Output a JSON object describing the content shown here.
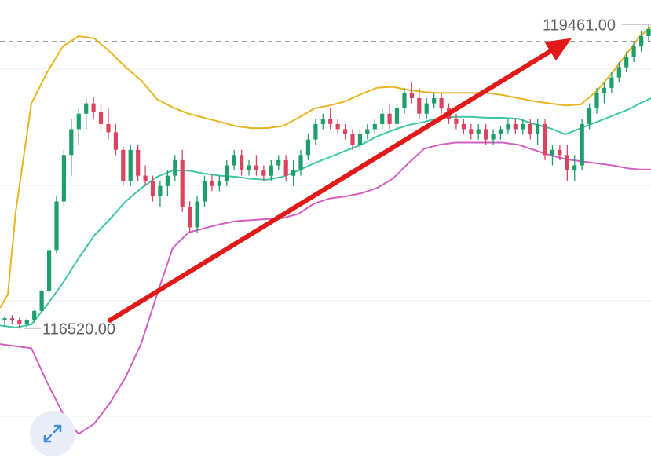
{
  "chart_data": {
    "type": "candlestick",
    "title": "",
    "xlabel": "",
    "ylabel": "",
    "price_labels": {
      "high": "119461.00",
      "low": "116520.00"
    },
    "high_value": 119461.0,
    "low_value": 116520.0,
    "reference_line": {
      "value": 119300,
      "style": "dashed"
    },
    "ylim": [
      115200,
      119700
    ],
    "grid": true,
    "colors": {
      "up": "#1f9d6b",
      "down": "#d9455f",
      "upper_band": "#e8b422",
      "middle_band": "#3ec7a6",
      "lower_band": "#d45fc4",
      "arrow": "#e01919"
    },
    "candles": [
      [
        116600,
        116640,
        116540,
        116620
      ],
      [
        116620,
        116650,
        116560,
        116600
      ],
      [
        116600,
        116630,
        116520,
        116560
      ],
      [
        116560,
        116620,
        116530,
        116600
      ],
      [
        116600,
        116700,
        116580,
        116690
      ],
      [
        116690,
        116900,
        116680,
        116880
      ],
      [
        116880,
        117300,
        116860,
        117280
      ],
      [
        117280,
        117800,
        117250,
        117750
      ],
      [
        117750,
        118250,
        117700,
        118200
      ],
      [
        118200,
        118550,
        118000,
        118450
      ],
      [
        118450,
        118650,
        118300,
        118600
      ],
      [
        118600,
        118750,
        118450,
        118700
      ],
      [
        118700,
        118760,
        118550,
        118620
      ],
      [
        118620,
        118700,
        118450,
        118500
      ],
      [
        118500,
        118650,
        118350,
        118420
      ],
      [
        118420,
        118500,
        118200,
        118250
      ],
      [
        118250,
        118280,
        117900,
        117950
      ],
      [
        117950,
        118300,
        117900,
        118250
      ],
      [
        118250,
        118300,
        117950,
        118000
      ],
      [
        118000,
        118100,
        117900,
        117950
      ],
      [
        117950,
        118000,
        117750,
        117800
      ],
      [
        117800,
        117950,
        117700,
        117900
      ],
      [
        117900,
        118050,
        117800,
        118000
      ],
      [
        118000,
        118200,
        117950,
        118150
      ],
      [
        118150,
        118250,
        117650,
        117700
      ],
      [
        117700,
        117750,
        117450,
        117500
      ],
      [
        117500,
        117800,
        117450,
        117750
      ],
      [
        117750,
        118000,
        117700,
        117950
      ],
      [
        117950,
        118020,
        117850,
        117900
      ],
      [
        117900,
        118000,
        117850,
        117950
      ],
      [
        117950,
        118150,
        117900,
        118100
      ],
      [
        118100,
        118250,
        118050,
        118200
      ],
      [
        118200,
        118250,
        118000,
        118050
      ],
      [
        118050,
        118150,
        118000,
        118100
      ],
      [
        118100,
        118200,
        118000,
        118050
      ],
      [
        118050,
        118100,
        117950,
        118000
      ],
      [
        118000,
        118150,
        117950,
        118100
      ],
      [
        118100,
        118200,
        118050,
        118150
      ],
      [
        118150,
        118200,
        117950,
        118000
      ],
      [
        118000,
        118150,
        117900,
        118050
      ],
      [
        118050,
        118250,
        118000,
        118200
      ],
      [
        118200,
        118400,
        118150,
        118350
      ],
      [
        118350,
        118550,
        118300,
        118500
      ],
      [
        118500,
        118600,
        118450,
        118550
      ],
      [
        118550,
        118650,
        118450,
        118500
      ],
      [
        118500,
        118550,
        118400,
        118450
      ],
      [
        118450,
        118500,
        118350,
        118400
      ],
      [
        118400,
        118450,
        118250,
        118300
      ],
      [
        118300,
        118450,
        118250,
        118400
      ],
      [
        118400,
        118500,
        118350,
        118450
      ],
      [
        118450,
        118550,
        118400,
        118500
      ],
      [
        118500,
        118650,
        118450,
        118600
      ],
      [
        118600,
        118700,
        118450,
        118500
      ],
      [
        118500,
        118700,
        118450,
        118650
      ],
      [
        118650,
        118850,
        118600,
        118800
      ],
      [
        118800,
        118900,
        118700,
        118750
      ],
      [
        118750,
        118850,
        118550,
        118600
      ],
      [
        118600,
        118750,
        118550,
        118700
      ],
      [
        118700,
        118800,
        118650,
        118750
      ],
      [
        118750,
        118800,
        118600,
        118650
      ],
      [
        118650,
        118700,
        118500,
        118550
      ],
      [
        118550,
        118600,
        118450,
        118500
      ],
      [
        118500,
        118550,
        118400,
        118450
      ],
      [
        118450,
        118500,
        118350,
        118400
      ],
      [
        118400,
        118500,
        118350,
        118450
      ],
      [
        118450,
        118500,
        118300,
        118350
      ],
      [
        118350,
        118450,
        118300,
        118400
      ],
      [
        118400,
        118480,
        118350,
        118450
      ],
      [
        118450,
        118550,
        118400,
        118500
      ],
      [
        118500,
        118550,
        118400,
        118450
      ],
      [
        118450,
        118550,
        118400,
        118500
      ],
      [
        118500,
        118550,
        118350,
        118400
      ],
      [
        118400,
        118550,
        118300,
        118500
      ],
      [
        118500,
        118550,
        118150,
        118200
      ],
      [
        118200,
        118300,
        118100,
        118250
      ],
      [
        118250,
        118300,
        118150,
        118200
      ],
      [
        118200,
        118300,
        117950,
        118050
      ],
      [
        118050,
        118200,
        117950,
        118100
      ],
      [
        118100,
        118550,
        118050,
        118500
      ],
      [
        118500,
        118700,
        118450,
        118650
      ],
      [
        118650,
        118850,
        118600,
        118800
      ],
      [
        118800,
        118900,
        118700,
        118850
      ],
      [
        118850,
        119000,
        118800,
        118950
      ],
      [
        118950,
        119100,
        118900,
        119050
      ],
      [
        119050,
        119200,
        119000,
        119150
      ],
      [
        119150,
        119300,
        119100,
        119250
      ],
      [
        119250,
        119400,
        119200,
        119350
      ],
      [
        119350,
        119461,
        119300,
        119420
      ]
    ],
    "bands": {
      "upper": [
        [
          0,
          116720
        ],
        [
          10,
          116850
        ],
        [
          20,
          117650
        ],
        [
          40,
          118700
        ],
        [
          60,
          119000
        ],
        [
          80,
          119250
        ],
        [
          100,
          119350
        ],
        [
          120,
          119330
        ],
        [
          140,
          119200
        ],
        [
          160,
          119050
        ],
        [
          180,
          118920
        ],
        [
          200,
          118740
        ],
        [
          220,
          118660
        ],
        [
          240,
          118600
        ],
        [
          260,
          118560
        ],
        [
          280,
          118520
        ],
        [
          300,
          118480
        ],
        [
          320,
          118460
        ],
        [
          340,
          118460
        ],
        [
          360,
          118480
        ],
        [
          380,
          118560
        ],
        [
          400,
          118650
        ],
        [
          420,
          118680
        ],
        [
          440,
          118720
        ],
        [
          460,
          118790
        ],
        [
          480,
          118850
        ],
        [
          500,
          118860
        ],
        [
          520,
          118830
        ],
        [
          540,
          118810
        ],
        [
          560,
          118800
        ],
        [
          580,
          118800
        ],
        [
          600,
          118800
        ],
        [
          620,
          118800
        ],
        [
          640,
          118780
        ],
        [
          660,
          118750
        ],
        [
          680,
          118720
        ],
        [
          700,
          118700
        ],
        [
          720,
          118680
        ],
        [
          740,
          118690
        ],
        [
          760,
          118820
        ],
        [
          780,
          119000
        ],
        [
          800,
          119200
        ],
        [
          815,
          119350
        ],
        [
          829,
          119440
        ]
      ],
      "middle": [
        [
          0,
          116550
        ],
        [
          20,
          116530
        ],
        [
          40,
          116560
        ],
        [
          60,
          116750
        ],
        [
          80,
          116960
        ],
        [
          100,
          117200
        ],
        [
          120,
          117420
        ],
        [
          140,
          117580
        ],
        [
          160,
          117750
        ],
        [
          180,
          117880
        ],
        [
          200,
          117990
        ],
        [
          220,
          118050
        ],
        [
          240,
          118050
        ],
        [
          260,
          118020
        ],
        [
          280,
          118000
        ],
        [
          300,
          117990
        ],
        [
          320,
          117970
        ],
        [
          340,
          117960
        ],
        [
          360,
          117990
        ],
        [
          380,
          118050
        ],
        [
          400,
          118120
        ],
        [
          420,
          118180
        ],
        [
          440,
          118240
        ],
        [
          460,
          118300
        ],
        [
          480,
          118380
        ],
        [
          500,
          118440
        ],
        [
          520,
          118490
        ],
        [
          540,
          118520
        ],
        [
          560,
          118560
        ],
        [
          580,
          118570
        ],
        [
          600,
          118570
        ],
        [
          620,
          118560
        ],
        [
          640,
          118560
        ],
        [
          660,
          118550
        ],
        [
          680,
          118500
        ],
        [
          700,
          118460
        ],
        [
          720,
          118400
        ],
        [
          740,
          118460
        ],
        [
          760,
          118520
        ],
        [
          780,
          118580
        ],
        [
          800,
          118640
        ],
        [
          815,
          118700
        ],
        [
          829,
          118750
        ]
      ],
      "lower": [
        [
          0,
          116370
        ],
        [
          20,
          116350
        ],
        [
          40,
          116330
        ],
        [
          60,
          116000
        ],
        [
          80,
          115700
        ],
        [
          100,
          115500
        ],
        [
          120,
          115600
        ],
        [
          140,
          115800
        ],
        [
          160,
          116050
        ],
        [
          180,
          116380
        ],
        [
          200,
          116850
        ],
        [
          220,
          117300
        ],
        [
          240,
          117450
        ],
        [
          260,
          117490
        ],
        [
          280,
          117530
        ],
        [
          300,
          117560
        ],
        [
          320,
          117570
        ],
        [
          340,
          117580
        ],
        [
          360,
          117590
        ],
        [
          380,
          117630
        ],
        [
          400,
          117730
        ],
        [
          420,
          117780
        ],
        [
          440,
          117800
        ],
        [
          460,
          117830
        ],
        [
          480,
          117880
        ],
        [
          500,
          117970
        ],
        [
          520,
          118120
        ],
        [
          540,
          118260
        ],
        [
          560,
          118300
        ],
        [
          580,
          118320
        ],
        [
          600,
          118320
        ],
        [
          620,
          118320
        ],
        [
          640,
          118320
        ],
        [
          660,
          118300
        ],
        [
          680,
          118250
        ],
        [
          700,
          118200
        ],
        [
          720,
          118160
        ],
        [
          740,
          118140
        ],
        [
          760,
          118120
        ],
        [
          780,
          118100
        ],
        [
          800,
          118070
        ],
        [
          815,
          118060
        ],
        [
          829,
          118060
        ]
      ]
    },
    "trend_arrow": {
      "from": [
        140,
        116600
      ],
      "to": [
        728,
        119330
      ]
    }
  },
  "icons": {
    "expand": "expand-arrows-icon"
  }
}
